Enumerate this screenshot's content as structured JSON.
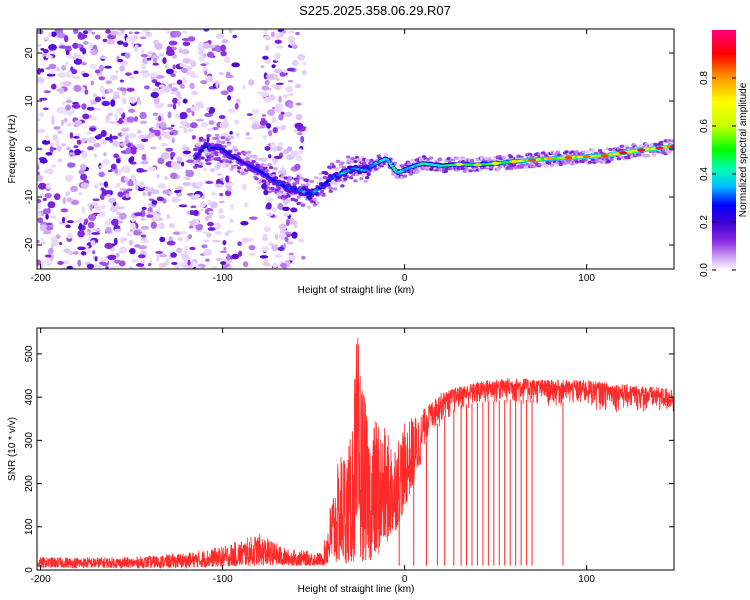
{
  "title": "S225.2025.358.06.29.R07",
  "colors": {
    "frame": "#000000",
    "snr_line": "#ff2a2a",
    "background": "#ffffff"
  },
  "chart_data": [
    {
      "type": "heatmap",
      "name": "spectrogram",
      "xlabel": "Height of straight line (km)",
      "ylabel": "Frequency (Hz)",
      "xlim": [
        -202,
        148
      ],
      "ylim": [
        -25,
        25
      ],
      "xticks": [
        -200,
        -100,
        0,
        100
      ],
      "yticks": [
        -20,
        -10,
        0,
        10,
        20
      ],
      "colorbar": {
        "label": "Normalized spectral amplitude",
        "range": [
          0,
          1
        ],
        "ticks": [
          0.0,
          0.2,
          0.4,
          0.6,
          0.8
        ],
        "colormap": [
          "#ffffff",
          "#d9b8f5",
          "#8b2be2",
          "#3d00d6",
          "#0000ff",
          "#00bfff",
          "#00ffb0",
          "#00ff00",
          "#c8ff00",
          "#ffff00",
          "#ff9900",
          "#ff0000",
          "#ff007f"
        ]
      },
      "ridge": [
        {
          "x": -115,
          "f": -2.0,
          "amp": 0.3
        },
        {
          "x": -110,
          "f": 0.5,
          "amp": 0.4
        },
        {
          "x": -100,
          "f": 0.0,
          "amp": 0.35
        },
        {
          "x": -95,
          "f": -1.5,
          "amp": 0.35
        },
        {
          "x": -88,
          "f": -3.0,
          "amp": 0.3
        },
        {
          "x": -80,
          "f": -4.5,
          "amp": 0.35
        },
        {
          "x": -72,
          "f": -6.5,
          "amp": 0.35
        },
        {
          "x": -65,
          "f": -8.0,
          "amp": 0.4
        },
        {
          "x": -58,
          "f": -8.5,
          "amp": 0.4
        },
        {
          "x": -52,
          "f": -9.5,
          "amp": 0.45
        },
        {
          "x": -46,
          "f": -8.0,
          "amp": 0.4
        },
        {
          "x": -40,
          "f": -6.0,
          "amp": 0.4
        },
        {
          "x": -34,
          "f": -5.0,
          "amp": 0.45
        },
        {
          "x": -28,
          "f": -4.0,
          "amp": 0.45
        },
        {
          "x": -22,
          "f": -4.5,
          "amp": 0.45
        },
        {
          "x": -16,
          "f": -3.0,
          "amp": 0.5
        },
        {
          "x": -10,
          "f": -2.0,
          "amp": 0.5
        },
        {
          "x": -4,
          "f": -5.0,
          "amp": 0.55
        },
        {
          "x": 2,
          "f": -4.0,
          "amp": 0.5
        },
        {
          "x": 10,
          "f": -3.0,
          "amp": 0.55
        },
        {
          "x": 20,
          "f": -3.5,
          "amp": 0.55
        },
        {
          "x": 30,
          "f": -3.2,
          "amp": 0.65
        },
        {
          "x": 40,
          "f": -3.3,
          "amp": 0.6
        },
        {
          "x": 50,
          "f": -3.0,
          "amp": 0.65
        },
        {
          "x": 60,
          "f": -2.6,
          "amp": 0.7
        },
        {
          "x": 70,
          "f": -2.3,
          "amp": 0.8
        },
        {
          "x": 80,
          "f": -2.0,
          "amp": 0.75
        },
        {
          "x": 90,
          "f": -1.8,
          "amp": 0.8
        },
        {
          "x": 100,
          "f": -1.6,
          "amp": 0.78
        },
        {
          "x": 110,
          "f": -1.4,
          "amp": 0.8
        },
        {
          "x": 120,
          "f": -0.8,
          "amp": 0.85
        },
        {
          "x": 130,
          "f": -0.2,
          "amp": 0.88
        },
        {
          "x": 140,
          "f": 0.2,
          "amp": 0.9
        },
        {
          "x": 148,
          "f": 0.5,
          "amp": 0.9
        }
      ],
      "noise_region_x": [
        -202,
        -55
      ]
    },
    {
      "type": "line",
      "name": "snr",
      "xlabel": "Height of straight line (km)",
      "ylabel": "SNR (10 * v/v)",
      "xlim": [
        -202,
        148
      ],
      "ylim": [
        0,
        560
      ],
      "xticks": [
        -200,
        -100,
        0,
        100
      ],
      "yticks": [
        0,
        100,
        200,
        300,
        400,
        500
      ],
      "envelope": [
        {
          "x": -202,
          "low": 5,
          "high": 30
        },
        {
          "x": -150,
          "low": 5,
          "high": 30
        },
        {
          "x": -120,
          "low": 5,
          "high": 40
        },
        {
          "x": -100,
          "low": 8,
          "high": 55
        },
        {
          "x": -80,
          "low": 10,
          "high": 85
        },
        {
          "x": -65,
          "low": 10,
          "high": 50
        },
        {
          "x": -45,
          "low": 10,
          "high": 40
        },
        {
          "x": -40,
          "low": 15,
          "high": 180
        },
        {
          "x": -35,
          "low": 15,
          "high": 280
        },
        {
          "x": -30,
          "low": 15,
          "high": 300
        },
        {
          "x": -26,
          "low": 20,
          "high": 560
        },
        {
          "x": -20,
          "low": 20,
          "high": 330
        },
        {
          "x": -15,
          "low": 30,
          "high": 360
        },
        {
          "x": -10,
          "low": 60,
          "high": 320
        },
        {
          "x": -5,
          "low": 90,
          "high": 310
        },
        {
          "x": 0,
          "low": 140,
          "high": 340
        },
        {
          "x": 5,
          "low": 200,
          "high": 360
        },
        {
          "x": 10,
          "low": 260,
          "high": 370
        },
        {
          "x": 15,
          "low": 300,
          "high": 390
        },
        {
          "x": 20,
          "low": 330,
          "high": 410
        },
        {
          "x": 30,
          "low": 360,
          "high": 425
        },
        {
          "x": 45,
          "low": 370,
          "high": 440
        },
        {
          "x": 60,
          "low": 375,
          "high": 445
        },
        {
          "x": 80,
          "low": 370,
          "high": 440
        },
        {
          "x": 100,
          "low": 365,
          "high": 440
        },
        {
          "x": 120,
          "low": 360,
          "high": 430
        },
        {
          "x": 148,
          "low": 350,
          "high": 420
        }
      ],
      "dropouts_x": [
        -3,
        5,
        12,
        18,
        22,
        27,
        31,
        34,
        37,
        40,
        43,
        46,
        49,
        52,
        55,
        58,
        61,
        64,
        67,
        70,
        87
      ]
    }
  ]
}
